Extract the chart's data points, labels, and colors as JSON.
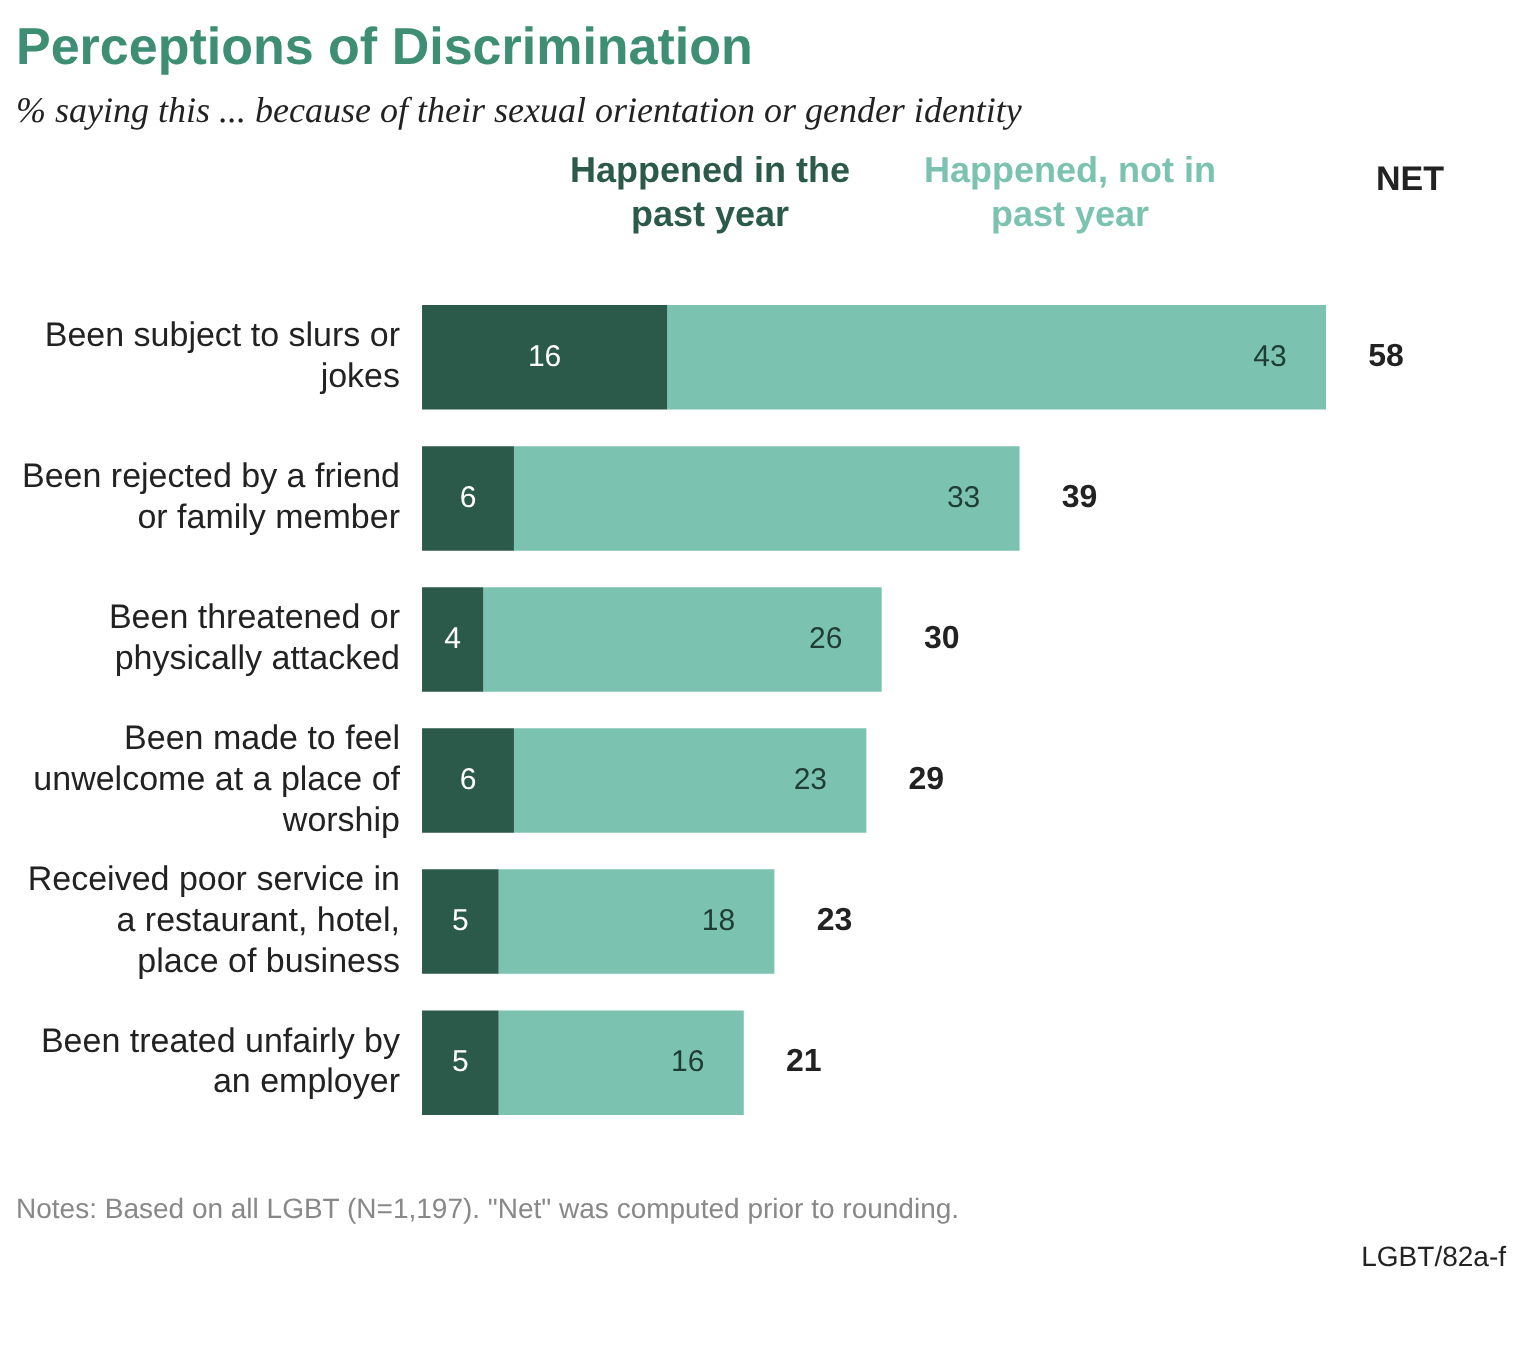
{
  "chart_data": {
    "type": "bar",
    "orientation": "horizontal",
    "stacked": true,
    "title": "Perceptions of Discrimination",
    "subtitle": "% saying this ... because of their sexual orientation or gender identity",
    "categories": [
      "Been subject to slurs or jokes",
      "Been rejected by a friend or family member",
      "Been threatened or physically attacked",
      "Been made to feel unwelcome at a place of worship",
      "Received poor service in a restaurant, hotel, place of business",
      "Been treated unfairly by an employer"
    ],
    "series": [
      {
        "name": "Happened in the past year",
        "color": "#2b5a4b",
        "values": [
          16,
          6,
          4,
          6,
          5,
          5
        ]
      },
      {
        "name": "Happened, not in past year",
        "color": "#7cc2b0",
        "values": [
          43,
          33,
          26,
          23,
          18,
          16
        ]
      }
    ],
    "data_labels": true,
    "legend": "top",
    "legend_title": "NET",
    "totals": [
      "58",
      "39",
      "30",
      "29",
      "23",
      "21"
    ],
    "annotations": [
      "Notes: Based on all LGBT (N=1,197). \"Net\" was computed prior to rounding.",
      "LGBT/82a-f"
    ]
  }
}
